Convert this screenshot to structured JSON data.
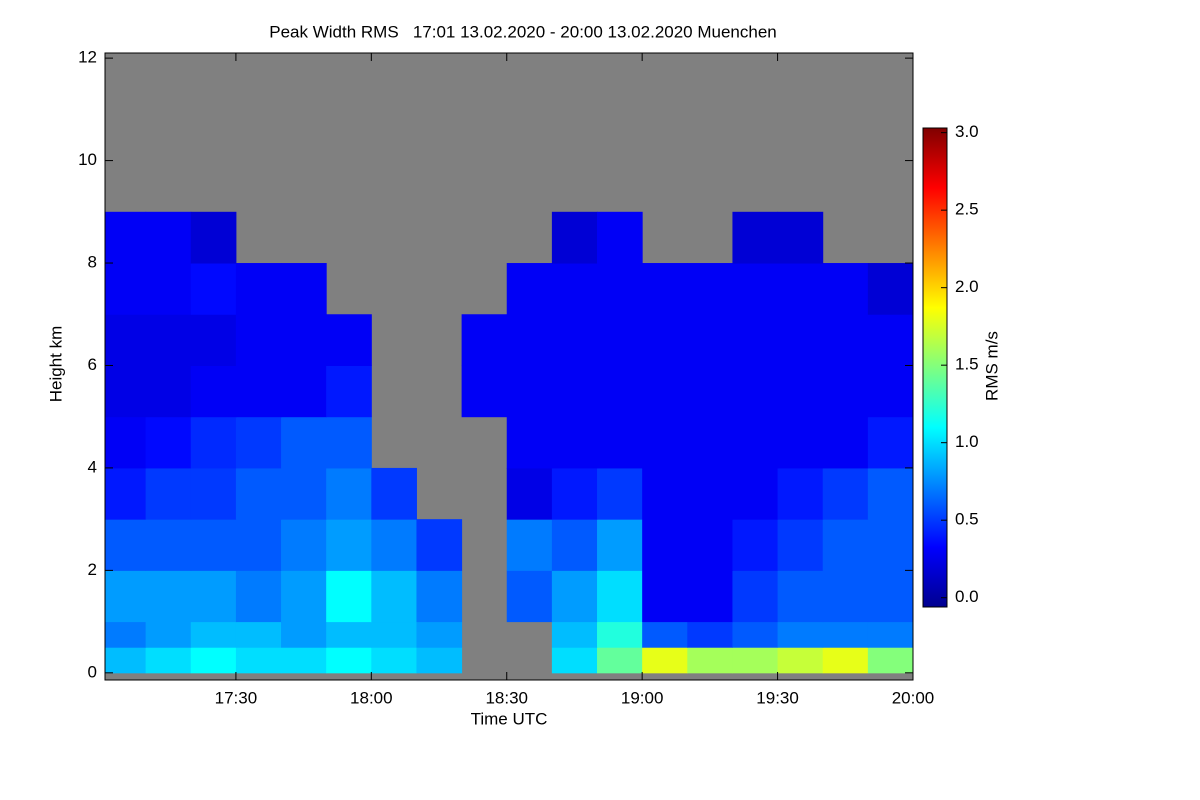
{
  "chart_data": {
    "type": "heatmap",
    "title": "Peak Width RMS   17:01 13.02.2020 - 20:00 13.02.2020 Muenchen",
    "x_label": "Time UTC",
    "y_label": "Height km",
    "colorbar_label": "RMS m/s",
    "xlim": [
      "17:01",
      "20:00"
    ],
    "xticks": [
      "17:30",
      "18:00",
      "18:30",
      "19:00",
      "19:30",
      "20:00"
    ],
    "ylim": [
      -0.14,
      12.1
    ],
    "yticks": [
      0,
      2,
      4,
      6,
      8,
      10,
      12
    ],
    "clim": [
      -0.06,
      3.03
    ],
    "cticks": [
      {
        "value": 0,
        "label": "0.0"
      },
      {
        "value": 0.5,
        "label": "0.5"
      },
      {
        "value": 1,
        "label": "1.0"
      },
      {
        "value": 1.5,
        "label": "1.5"
      },
      {
        "value": 2,
        "label": "2.0"
      },
      {
        "value": 2.5,
        "label": "2.5"
      },
      {
        "value": 3,
        "label": "3.0"
      }
    ],
    "colormap": "jet",
    "background_color": "#808080",
    "x_edges": [
      "17:01",
      "17:10",
      "17:20",
      "17:30",
      "17:40",
      "17:50",
      "18:00",
      "18:10",
      "18:20",
      "18:30",
      "18:40",
      "18:50",
      "19:00",
      "19:10",
      "19:20",
      "19:30",
      "19:40",
      "19:50",
      "20:00"
    ],
    "y_edges": [
      0,
      0.5,
      1,
      2,
      3,
      4,
      5,
      6,
      7,
      8,
      9
    ],
    "values": [
      [
        0.9,
        1.0,
        1.1,
        1.0,
        1.0,
        1.1,
        1.0,
        0.9,
        null,
        null,
        1.0,
        1.4,
        1.8,
        1.6,
        1.6,
        1.7,
        1.8,
        1.5
      ],
      [
        0.7,
        0.8,
        0.9,
        0.9,
        0.8,
        0.9,
        0.9,
        0.8,
        null,
        null,
        0.9,
        1.2,
        0.6,
        0.5,
        0.6,
        0.7,
        0.7,
        0.7
      ],
      [
        0.8,
        0.8,
        0.8,
        0.7,
        0.8,
        1.1,
        0.9,
        0.7,
        null,
        0.6,
        0.8,
        1.0,
        0.3,
        0.3,
        0.5,
        0.6,
        0.6,
        0.6
      ],
      [
        0.6,
        0.6,
        0.6,
        0.6,
        0.7,
        0.8,
        0.7,
        0.5,
        null,
        0.7,
        0.6,
        0.8,
        0.3,
        0.3,
        0.4,
        0.5,
        0.6,
        0.6
      ],
      [
        0.4,
        0.5,
        0.5,
        0.6,
        0.6,
        0.7,
        0.5,
        null,
        null,
        0.25,
        0.4,
        0.5,
        0.3,
        0.3,
        0.3,
        0.4,
        0.5,
        0.6
      ],
      [
        0.3,
        0.35,
        0.45,
        0.5,
        0.6,
        0.6,
        null,
        null,
        null,
        0.3,
        0.3,
        0.3,
        0.3,
        0.3,
        0.3,
        0.3,
        0.3,
        0.4
      ],
      [
        0.25,
        0.25,
        0.3,
        0.3,
        0.3,
        0.4,
        null,
        null,
        0.3,
        0.3,
        0.3,
        0.3,
        0.3,
        0.3,
        0.3,
        0.3,
        0.3,
        0.3
      ],
      [
        0.25,
        0.25,
        0.25,
        0.3,
        0.3,
        0.3,
        null,
        null,
        0.3,
        0.3,
        0.3,
        0.3,
        0.3,
        0.3,
        0.3,
        0.3,
        0.3,
        0.3
      ],
      [
        0.3,
        0.3,
        0.35,
        0.3,
        0.3,
        null,
        null,
        null,
        null,
        0.3,
        0.3,
        0.3,
        0.3,
        0.3,
        0.3,
        0.3,
        0.3,
        0.2
      ],
      [
        0.3,
        0.3,
        0.2,
        null,
        null,
        null,
        null,
        null,
        null,
        null,
        0.2,
        0.3,
        null,
        null,
        0.2,
        0.2,
        null,
        null
      ]
    ]
  }
}
